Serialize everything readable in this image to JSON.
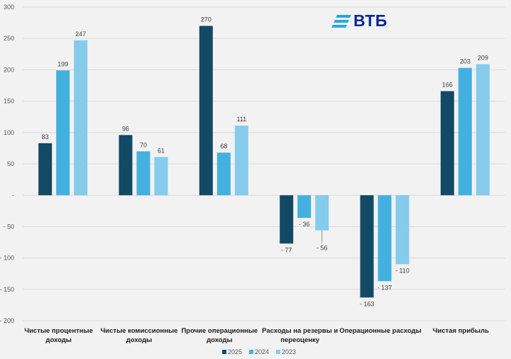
{
  "brand": {
    "logo_text": "ВТБ",
    "stripe_color": "#29a8e0",
    "text_color": "#0a2896"
  },
  "chart_data": {
    "type": "bar",
    "title": "",
    "xlabel": "",
    "ylabel": "",
    "ylim": [
      -200,
      300
    ],
    "yticks": [
      300,
      250,
      200,
      150,
      100,
      50,
      0,
      -50,
      -100,
      -150,
      -200
    ],
    "ytick_labels": [
      "300",
      "250",
      "200",
      "150",
      "100",
      "50",
      "-",
      "- 50",
      "- 100",
      "- 150",
      "- 200"
    ],
    "grid": true,
    "legend_position": "bottom",
    "categories": [
      "Чистые процентные доходы",
      "Чистые комиссионные доходы",
      "Прочие операционные доходы",
      "Расходы на резервы и переоценку",
      "Операционные расходы",
      "Чистая прибыль"
    ],
    "category_lines": [
      [
        "Чистые процентные",
        "доходы"
      ],
      [
        "Чистые комиссионные",
        "доходы"
      ],
      [
        "Прочие операционные",
        "доходы"
      ],
      [
        "Расходы на резервы и",
        "переоценку"
      ],
      [
        "Операционные расходы"
      ],
      [
        "Чистая прибыль"
      ]
    ],
    "series": [
      {
        "name": "2025",
        "color": "#124a66",
        "values": [
          83,
          96,
          270,
          -77,
          -163,
          166
        ],
        "labels": [
          "83",
          "96",
          "270",
          "- 77",
          "- 163",
          "166"
        ]
      },
      {
        "name": "2024",
        "color": "#44b0e0",
        "values": [
          199,
          70,
          68,
          -36,
          -137,
          203
        ],
        "labels": [
          "199",
          "70",
          "68",
          "- 36",
          "- 137",
          "203"
        ]
      },
      {
        "name": "2023",
        "color": "#85cbec",
        "values": [
          247,
          61,
          111,
          -56,
          -110,
          209
        ],
        "labels": [
          "247",
          "61",
          "111",
          "- 56",
          "- 110",
          "209"
        ]
      }
    ]
  }
}
